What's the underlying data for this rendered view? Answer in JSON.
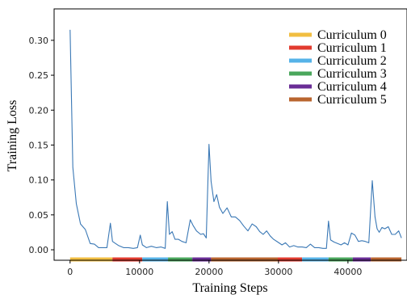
{
  "chart_data": {
    "type": "line",
    "title": "",
    "xlabel": "Training Steps",
    "ylabel": "Training Loss",
    "xlim": [
      -2300,
      48500
    ],
    "ylim": [
      -0.015,
      0.345
    ],
    "xticks": [
      0,
      10000,
      20000,
      30000,
      40000
    ],
    "xtick_labels": [
      "0",
      "10000",
      "20000",
      "30000",
      "40000"
    ],
    "yticks": [
      0.0,
      0.05,
      0.1,
      0.15,
      0.2,
      0.25,
      0.3
    ],
    "ytick_labels": [
      "0.00",
      "0.05",
      "0.10",
      "0.15",
      "0.20",
      "0.25",
      "0.30"
    ],
    "grid": false,
    "legend_position": "top-right",
    "series": [
      {
        "color": "#3a78b5",
        "x": [
          0,
          400,
          900,
          1500,
          2200,
          2900,
          3500,
          4100,
          4700,
          5300,
          5800,
          6100,
          6400,
          7000,
          7700,
          8400,
          9100,
          9700,
          10100,
          10400,
          11000,
          11700,
          12400,
          13100,
          13700,
          14000,
          14300,
          14700,
          15100,
          15600,
          16100,
          16700,
          17300,
          17700,
          18200,
          18800,
          19200,
          19600,
          20000,
          20300,
          20700,
          21100,
          21500,
          22000,
          22600,
          23200,
          23800,
          24400,
          25000,
          25600,
          26200,
          26800,
          27300,
          27800,
          28300,
          28800,
          29300,
          29900,
          30500,
          31000,
          31600,
          32200,
          32800,
          33400,
          34000,
          34600,
          35200,
          35800,
          36400,
          36900,
          37200,
          37500,
          38000,
          38500,
          39000,
          39500,
          40000,
          40500,
          41000,
          41500,
          42000,
          42500,
          43000,
          43500,
          43900,
          44200,
          44500,
          44900,
          45300,
          45800,
          46300,
          46800,
          47300,
          47700
        ],
        "y": [
          0.315,
          0.118,
          0.066,
          0.037,
          0.029,
          0.009,
          0.008,
          0.003,
          0.003,
          0.003,
          0.038,
          0.012,
          0.01,
          0.006,
          0.003,
          0.003,
          0.002,
          0.003,
          0.021,
          0.007,
          0.003,
          0.005,
          0.003,
          0.004,
          0.002,
          0.069,
          0.022,
          0.026,
          0.015,
          0.015,
          0.012,
          0.01,
          0.043,
          0.035,
          0.027,
          0.022,
          0.023,
          0.017,
          0.151,
          0.098,
          0.069,
          0.079,
          0.061,
          0.052,
          0.06,
          0.047,
          0.047,
          0.042,
          0.034,
          0.027,
          0.037,
          0.033,
          0.026,
          0.022,
          0.027,
          0.02,
          0.015,
          0.011,
          0.007,
          0.01,
          0.004,
          0.006,
          0.004,
          0.004,
          0.003,
          0.008,
          0.003,
          0.003,
          0.002,
          0.002,
          0.041,
          0.014,
          0.011,
          0.009,
          0.007,
          0.01,
          0.007,
          0.024,
          0.021,
          0.012,
          0.013,
          0.012,
          0.01,
          0.099,
          0.047,
          0.03,
          0.025,
          0.032,
          0.03,
          0.033,
          0.022,
          0.022,
          0.027,
          0.017
        ]
      }
    ],
    "curricula": [
      {
        "name": "Curriculum 0",
        "color": "#f1be41",
        "start": 0,
        "end": 6100
      },
      {
        "name": "Curriculum 1",
        "color": "#e23b2f",
        "start": 6100,
        "end": 10400
      },
      {
        "name": "Curriculum 2",
        "color": "#56b3e8",
        "start": 10400,
        "end": 14100
      },
      {
        "name": "Curriculum 3",
        "color": "#4aa75c",
        "start": 14100,
        "end": 17600
      },
      {
        "name": "Curriculum 4",
        "color": "#6a2d96",
        "start": 17600,
        "end": 20300
      },
      {
        "name": "Curriculum 5",
        "color": "#b9652f",
        "start": 20300,
        "end": 29900
      },
      {
        "name": "Curriculum 1",
        "color": "#e23b2f",
        "start": 29900,
        "end": 33400
      },
      {
        "name": "Curriculum 2",
        "color": "#56b3e8",
        "start": 33400,
        "end": 37200
      },
      {
        "name": "Curriculum 3",
        "color": "#4aa75c",
        "start": 37200,
        "end": 40700
      },
      {
        "name": "Curriculum 4",
        "color": "#6a2d96",
        "start": 40700,
        "end": 43300
      },
      {
        "name": "Curriculum 5",
        "color": "#b9652f",
        "start": 43300,
        "end": 47700
      }
    ],
    "legend": [
      {
        "label": "Curriculum 0",
        "color": "#f1be41"
      },
      {
        "label": "Curriculum 1",
        "color": "#e23b2f"
      },
      {
        "label": "Curriculum 2",
        "color": "#56b3e8"
      },
      {
        "label": "Curriculum 3",
        "color": "#4aa75c"
      },
      {
        "label": "Curriculum 4",
        "color": "#6a2d96"
      },
      {
        "label": "Curriculum 5",
        "color": "#b9652f"
      }
    ]
  }
}
